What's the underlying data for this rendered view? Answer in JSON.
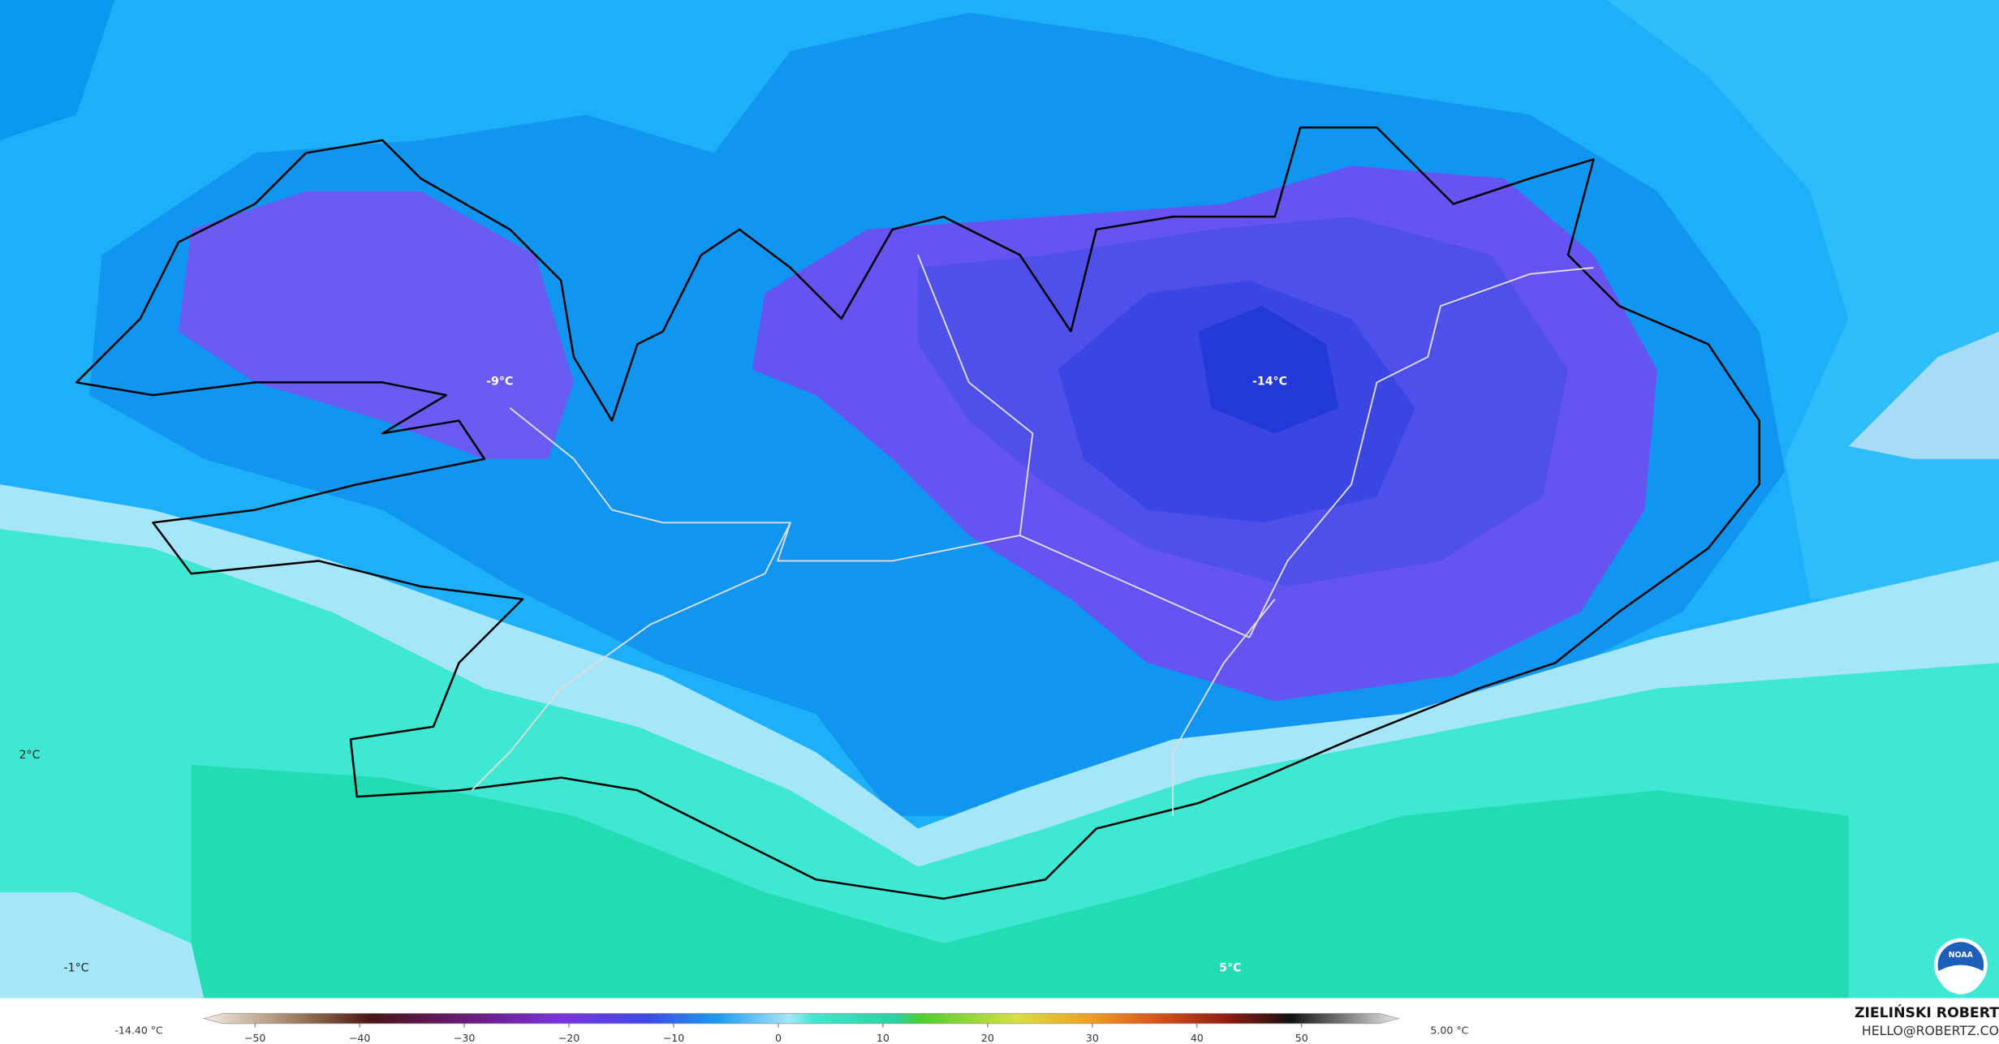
{
  "map": {
    "labels": [
      "-9°C",
      "-14°C",
      "2°C",
      "-1°C",
      "5°C"
    ],
    "colorbar": {
      "min_label": "-14.40 °C",
      "max_label": "5.00 °C",
      "ticks": [
        "−50",
        "−40",
        "−30",
        "−20",
        "−10",
        "0",
        "10",
        "20",
        "30",
        "40",
        "50"
      ]
    },
    "credit": {
      "name": "ZIELIŃSKI ROBERT",
      "email": "HELLO@ROBERTZ.CO"
    },
    "logo": "NOAA"
  }
}
